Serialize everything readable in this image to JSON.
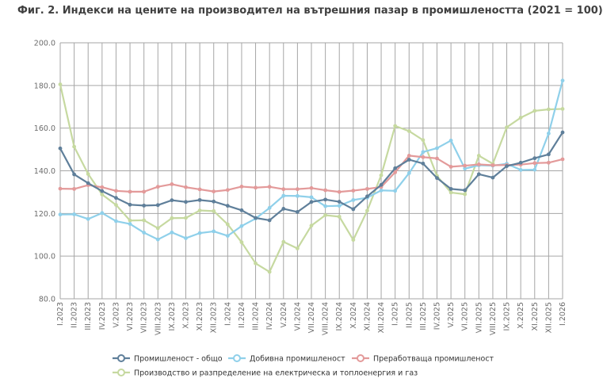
{
  "chart_data": {
    "type": "line",
    "title": "Фиг. 2. Индекси на цените на производител на вътрешния пазар в промишлеността (2021 = 100)",
    "xlabel": "",
    "ylabel": "",
    "ylim": [
      80,
      200
    ],
    "y_ticks": [
      "80.0",
      "100.0",
      "120.0",
      "140.0",
      "160.0",
      "180.0",
      "200.0"
    ],
    "grid": true,
    "legend_position": "bottom",
    "categories": [
      "I.2023",
      "II.2023",
      "III.2023",
      "IV.2023",
      "V.2023",
      "VI.2023",
      "VII.2023",
      "VIII.2023",
      "IX.2023",
      "X.2023",
      "XI.2023",
      "XII.2023",
      "I.2024",
      "II.2024",
      "III.2024",
      "IV.2024",
      "V.2024",
      "VI.2024",
      "VII.2024",
      "VIII.2024",
      "IX.2024",
      "X.2024",
      "XI.2024",
      "XII.2024",
      "I.2025",
      "II.2025",
      "III.2025",
      "IV.2025",
      "V.2025",
      "VI.2025",
      "VII.2025",
      "VIII.2025",
      "IX.2025",
      "X.2025",
      "XI.2025",
      "XII.2025",
      "I.2026"
    ],
    "series": [
      {
        "name": "Промишленост - общо",
        "color": "#5f7f9a",
        "values": [
          150.5,
          138.3,
          134.2,
          130.5,
          127.3,
          124.1,
          123.7,
          123.9,
          126.2,
          125.4,
          126.3,
          125.6,
          123.6,
          121.5,
          117.9,
          116.8,
          122.2,
          120.7,
          125.4,
          126.5,
          125.5,
          122.0,
          128.0,
          133.4,
          141.2,
          145.2,
          143.4,
          136.6,
          131.5,
          130.9,
          138.4,
          136.8,
          142.2,
          143.8,
          145.9,
          147.7,
          158.0
        ]
      },
      {
        "name": "Добивна промишленост",
        "color": "#8fd0ea",
        "values": [
          119.5,
          119.6,
          117.4,
          120.2,
          116.4,
          115.1,
          111.0,
          107.8,
          111.1,
          108.4,
          110.8,
          111.6,
          109.5,
          114.1,
          117.6,
          122.6,
          128.3,
          128.2,
          127.6,
          123.4,
          123.6,
          126.3,
          127.4,
          130.8,
          130.6,
          138.9,
          148.8,
          150.6,
          154.2,
          141.0,
          142.6,
          142.4,
          143.3,
          140.4,
          140.5,
          157.5,
          182.3
        ]
      },
      {
        "name": "Преработваща промишленост",
        "color": "#e39a9a",
        "values": [
          131.6,
          131.5,
          133.3,
          132.3,
          130.6,
          130.2,
          130.2,
          132.5,
          133.7,
          132.3,
          131.3,
          130.3,
          131.0,
          132.6,
          132.1,
          132.5,
          131.4,
          131.4,
          131.9,
          130.9,
          130.1,
          130.7,
          131.5,
          132.4,
          139.3,
          147.1,
          146.4,
          145.8,
          141.9,
          142.4,
          143.0,
          142.6,
          142.7,
          142.9,
          143.6,
          143.8,
          145.4
        ]
      },
      {
        "name": "Производство и разпределение на електрическа и топлоенергия и газ",
        "color": "#c6d9a0",
        "values": [
          180.5,
          151.3,
          138.5,
          128.9,
          124.0,
          116.7,
          116.8,
          113.1,
          117.8,
          117.9,
          121.4,
          121.1,
          114.9,
          106.5,
          96.6,
          92.6,
          106.7,
          103.6,
          114.3,
          119.2,
          118.5,
          107.6,
          121.3,
          137.9,
          161.0,
          158.6,
          154.4,
          137.6,
          129.8,
          129.0,
          147.1,
          143.3,
          160.4,
          164.9,
          168.1,
          168.8,
          169.0
        ]
      }
    ]
  }
}
